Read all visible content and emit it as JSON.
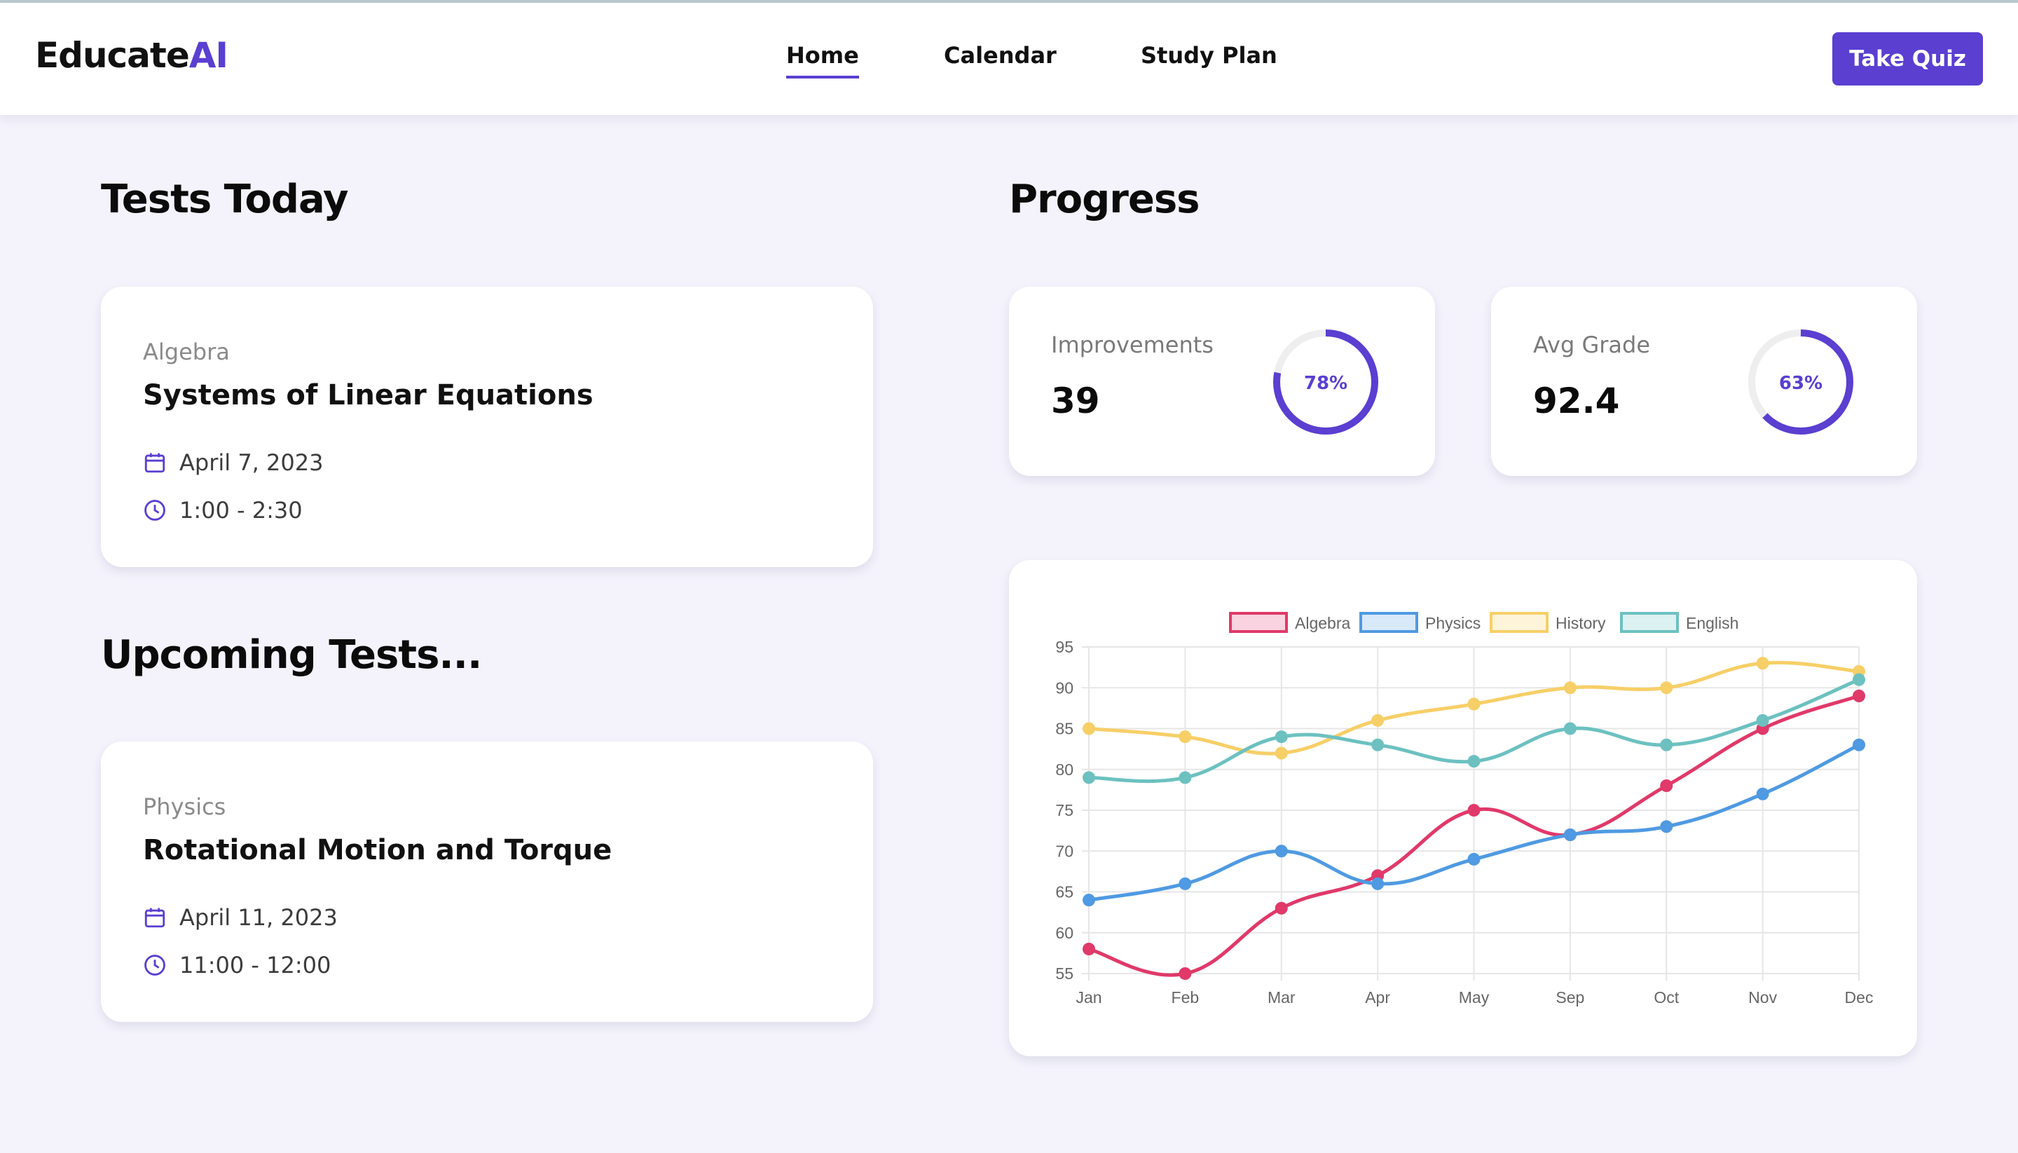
{
  "header": {
    "logo_main": "Educate",
    "logo_accent": "AI",
    "nav": [
      {
        "label": "Home",
        "active": true
      },
      {
        "label": "Calendar",
        "active": false
      },
      {
        "label": "Study Plan",
        "active": false
      }
    ],
    "cta_label": "Take Quiz"
  },
  "tests_today": {
    "title": "Tests Today",
    "items": [
      {
        "subject": "Algebra",
        "name": "Systems of Linear Equations",
        "date": "April 7, 2023",
        "time": "1:00 - 2:30"
      }
    ]
  },
  "upcoming": {
    "title": "Upcoming Tests...",
    "items": [
      {
        "subject": "Physics",
        "name": "Rotational Motion and Torque",
        "date": "April 11, 2023",
        "time": "11:00 - 12:00"
      }
    ]
  },
  "progress": {
    "title": "Progress",
    "stats": [
      {
        "label": "Improvements",
        "value": "39",
        "percent": 78,
        "percent_label": "78%"
      },
      {
        "label": "Avg Grade",
        "value": "92.4",
        "percent": 63,
        "percent_label": "63%"
      }
    ]
  },
  "colors": {
    "accent": "#5a3fd1",
    "algebra": "#e0396a",
    "physics": "#4f9ae2",
    "history": "#f7cf67",
    "english": "#6cc1c0"
  },
  "icons": {
    "date": "calendar-icon",
    "time": "clock-icon"
  },
  "chart_data": {
    "type": "line",
    "categories": [
      "Jan",
      "Feb",
      "Mar",
      "Apr",
      "May",
      "Sep",
      "Oct",
      "Nov",
      "Dec"
    ],
    "ylim": [
      55,
      95
    ],
    "yticks": [
      55,
      60,
      65,
      70,
      75,
      80,
      85,
      90,
      95
    ],
    "grid": true,
    "legend": "top-center",
    "series": [
      {
        "name": "Algebra",
        "color": "#e0396a",
        "fill": "#f9d3df",
        "values": [
          58,
          55,
          63,
          67,
          75,
          72,
          78,
          85,
          89
        ]
      },
      {
        "name": "Physics",
        "color": "#4f9ae2",
        "fill": "#d8e9fa",
        "values": [
          64,
          66,
          70,
          66,
          69,
          72,
          73,
          77,
          83
        ]
      },
      {
        "name": "History",
        "color": "#f7cf67",
        "fill": "#fdf4da",
        "values": [
          85,
          84,
          82,
          86,
          88,
          90,
          90,
          93,
          92
        ]
      },
      {
        "name": "English",
        "color": "#6cc1c0",
        "fill": "#dcf1f1",
        "values": [
          79,
          79,
          84,
          83,
          81,
          85,
          83,
          86,
          91
        ]
      }
    ]
  }
}
